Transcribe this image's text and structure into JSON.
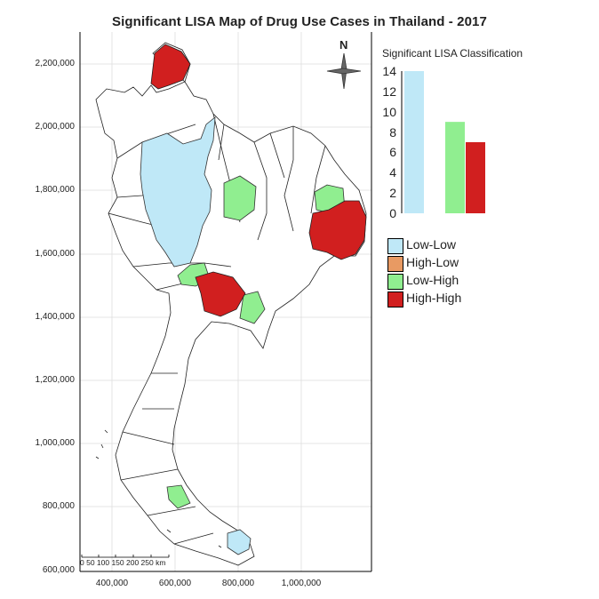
{
  "title": "Significant LISA Map of Drug Use Cases in Thailand - 2017",
  "map": {
    "y_ticks": [
      "2,200,000",
      "2,000,000",
      "1,800,000",
      "1,600,000",
      "1,400,000",
      "1,200,000",
      "1,000,000",
      "800,000",
      "600,000"
    ],
    "x_ticks": [
      "400,000",
      "600,000",
      "800,000",
      "1,000,000"
    ],
    "scalebar": "0   50  100 150 200 250 km",
    "north_arrow": "N"
  },
  "legend": {
    "title": "Significant LISA Classification",
    "items": [
      {
        "label": "Low-Low",
        "color": "#bfe8f7"
      },
      {
        "label": "High-Low",
        "color": "#e89a63"
      },
      {
        "label": "Low-High",
        "color": "#90ee90"
      },
      {
        "label": "High-High",
        "color": "#d11f1f"
      }
    ]
  },
  "chart_data": {
    "type": "bar",
    "title": "Significant LISA Classification",
    "categories": [
      "Low-Low",
      "High-Low",
      "Low-High",
      "High-High"
    ],
    "values": [
      14,
      0,
      9,
      7
    ],
    "colors": [
      "#bfe8f7",
      "#e89a63",
      "#90ee90",
      "#d11f1f"
    ],
    "y_ticks": [
      "0",
      "2",
      "4",
      "6",
      "8",
      "10",
      "12",
      "14"
    ],
    "ylim": [
      0,
      14
    ]
  }
}
